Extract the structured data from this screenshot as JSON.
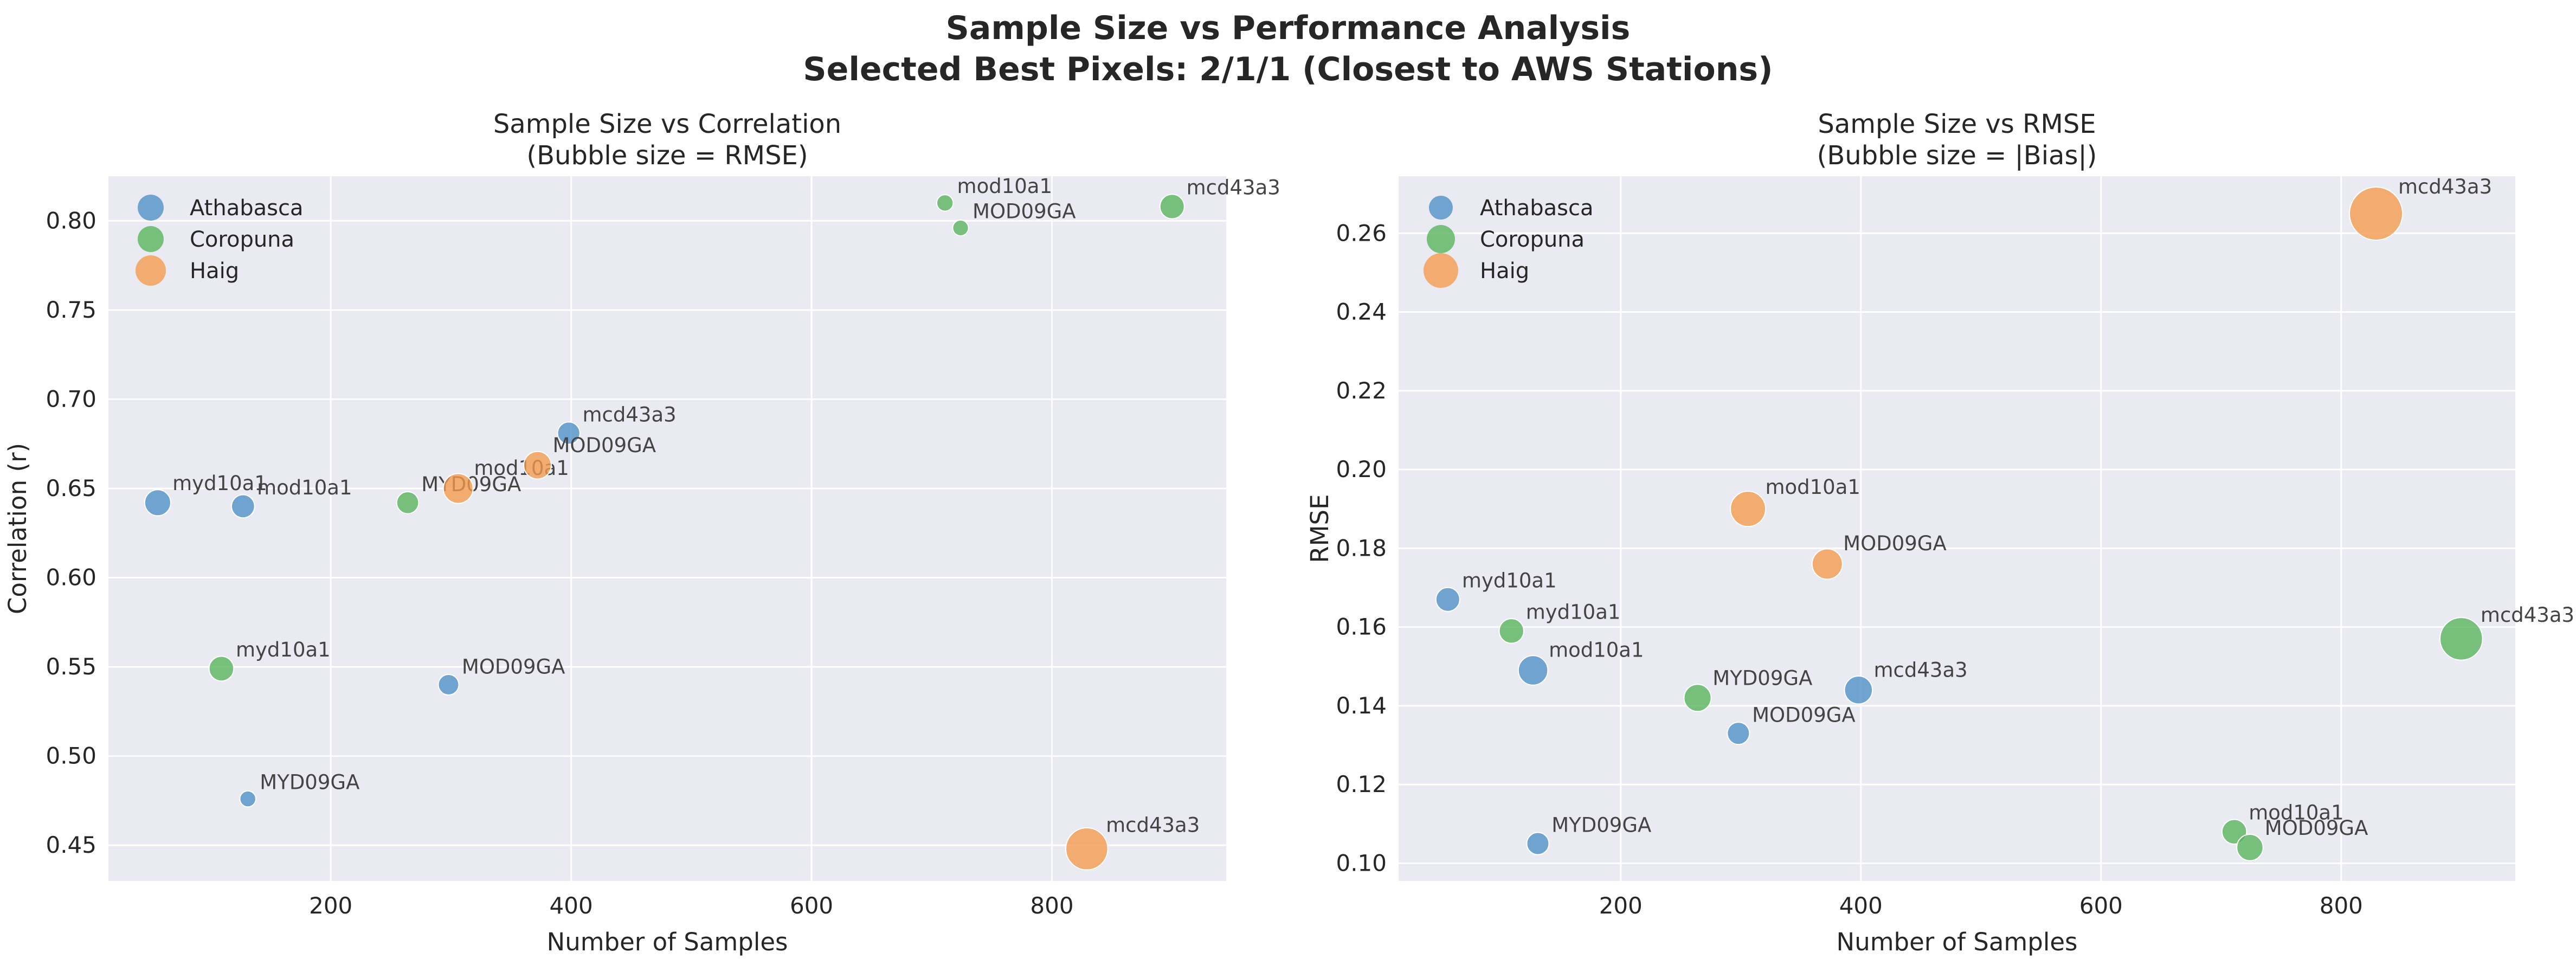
{
  "figure": {
    "title_line1": "Sample Size vs Performance Analysis",
    "title_line2": "Selected Best Pixels: 2/1/1 (Closest to AWS Stations)"
  },
  "colors": {
    "Athabasca": "#4c8fc7",
    "Coropuna": "#55b35a",
    "Haig": "#f59a4b",
    "plot_bg": "#eaeaf2",
    "grid": "#ffffff"
  },
  "chart_data": [
    {
      "type": "scatter",
      "title": "Sample Size vs Correlation\n(Bubble size = RMSE)",
      "title_lines": [
        "Sample Size vs Correlation",
        "(Bubble size = RMSE)"
      ],
      "xlabel": "Number of Samples",
      "ylabel": "Correlation (r)",
      "xlim": [
        15,
        945
      ],
      "ylim": [
        0.43,
        0.825
      ],
      "xticks": [
        200,
        400,
        600,
        800
      ],
      "yticks": [
        0.45,
        0.5,
        0.55,
        0.6,
        0.65,
        0.7,
        0.75,
        0.8
      ],
      "ytick_decimals": 2,
      "size_by": "rmse",
      "grid": true,
      "legend": "upper-left",
      "series": [
        {
          "name": "Athabasca",
          "points": [
            {
              "label": "myd10a1",
              "x": 56,
              "y": 0.642,
              "rmse": 0.167
            },
            {
              "label": "mod10a1",
              "x": 127,
              "y": 0.64,
              "rmse": 0.149
            },
            {
              "label": "MOD09GA",
              "x": 298,
              "y": 0.54,
              "rmse": 0.133
            },
            {
              "label": "MYD09GA",
              "x": 131,
              "y": 0.476,
              "rmse": 0.105
            },
            {
              "label": "mcd43a3",
              "x": 398,
              "y": 0.681,
              "rmse": 0.144
            }
          ]
        },
        {
          "name": "Coropuna",
          "points": [
            {
              "label": "mod10a1",
              "x": 711,
              "y": 0.81,
              "rmse": 0.108
            },
            {
              "label": "MOD09GA",
              "x": 724,
              "y": 0.796,
              "rmse": 0.104
            },
            {
              "label": "mcd43a3",
              "x": 900,
              "y": 0.808,
              "rmse": 0.157
            },
            {
              "label": "MYD09GA",
              "x": 264,
              "y": 0.642,
              "rmse": 0.142
            },
            {
              "label": "myd10a1",
              "x": 109,
              "y": 0.549,
              "rmse": 0.159
            }
          ]
        },
        {
          "name": "Haig",
          "points": [
            {
              "label": "mod10a1",
              "x": 306,
              "y": 0.65,
              "rmse": 0.19
            },
            {
              "label": "MOD09GA",
              "x": 372,
              "y": 0.663,
              "rmse": 0.176
            },
            {
              "label": "mcd43a3",
              "x": 829,
              "y": 0.448,
              "rmse": 0.265
            }
          ]
        }
      ]
    },
    {
      "type": "scatter",
      "title": "Sample Size vs RMSE\n(Bubble size = |Bias|)",
      "title_lines": [
        "Sample Size vs RMSE",
        "(Bubble size = |Bias|)"
      ],
      "xlabel": "Number of Samples",
      "ylabel": "RMSE",
      "xlim": [
        15,
        945
      ],
      "ylim": [
        0.0955,
        0.2745
      ],
      "xticks": [
        200,
        400,
        600,
        800
      ],
      "yticks": [
        0.1,
        0.12,
        0.14,
        0.16,
        0.18,
        0.2,
        0.22,
        0.24,
        0.26
      ],
      "ytick_decimals": 2,
      "size_by": "abs_bias",
      "grid": true,
      "legend": "upper-left",
      "series": [
        {
          "name": "Athabasca",
          "points": [
            {
              "label": "myd10a1",
              "x": 56,
              "y": 0.167,
              "abs_bias": 0.04
            },
            {
              "label": "mod10a1",
              "x": 127,
              "y": 0.149,
              "abs_bias": 0.075
            },
            {
              "label": "MOD09GA",
              "x": 298,
              "y": 0.133,
              "abs_bias": 0.03
            },
            {
              "label": "MYD09GA",
              "x": 131,
              "y": 0.105,
              "abs_bias": 0.03
            },
            {
              "label": "mcd43a3",
              "x": 398,
              "y": 0.144,
              "abs_bias": 0.065
            }
          ]
        },
        {
          "name": "Coropuna",
          "points": [
            {
              "label": "mod10a1",
              "x": 711,
              "y": 0.108,
              "abs_bias": 0.045
            },
            {
              "label": "MOD09GA",
              "x": 724,
              "y": 0.104,
              "abs_bias": 0.055
            },
            {
              "label": "mcd43a3",
              "x": 900,
              "y": 0.157,
              "abs_bias": 0.155
            },
            {
              "label": "MYD09GA",
              "x": 264,
              "y": 0.142,
              "abs_bias": 0.06
            },
            {
              "label": "myd10a1",
              "x": 109,
              "y": 0.159,
              "abs_bias": 0.045
            }
          ]
        },
        {
          "name": "Haig",
          "points": [
            {
              "label": "mod10a1",
              "x": 306,
              "y": 0.19,
              "abs_bias": 0.11
            },
            {
              "label": "MOD09GA",
              "x": 372,
              "y": 0.176,
              "abs_bias": 0.08
            },
            {
              "label": "mcd43a3",
              "x": 829,
              "y": 0.265,
              "abs_bias": 0.22
            }
          ]
        }
      ]
    }
  ]
}
